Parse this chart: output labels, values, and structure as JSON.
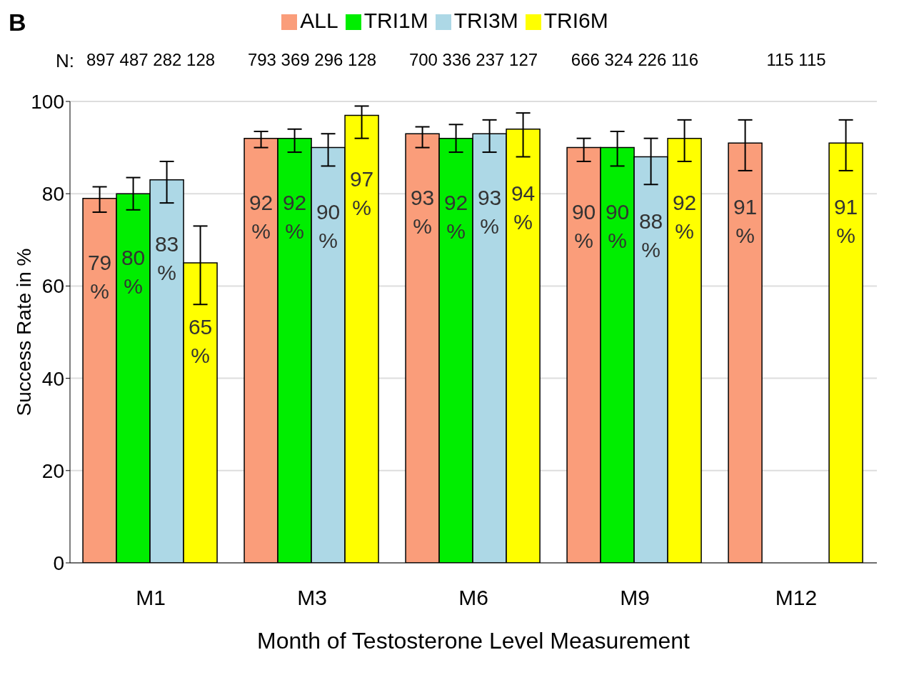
{
  "chart_data": {
    "type": "bar",
    "xlabel": "Month of Testosterone Level Measurement",
    "ylabel": "Success Rate in %",
    "categories": [
      "M1",
      "M3",
      "M6",
      "M9",
      "M12"
    ],
    "series": [
      {
        "name": "ALL",
        "color": "#fa9d7a",
        "values": [
          79,
          92,
          93,
          90,
          91
        ],
        "errors": [
          [
            76,
            81.5
          ],
          [
            90,
            93.5
          ],
          [
            90,
            94.5
          ],
          [
            87,
            92
          ],
          [
            85,
            96
          ]
        ],
        "value_labels": [
          "79 %",
          "92 %",
          "93 %",
          "90 %",
          "91 %"
        ]
      },
      {
        "name": "TRI1M",
        "color": "#00ee00",
        "values": [
          80,
          92,
          92,
          90,
          null
        ],
        "errors": [
          [
            76.5,
            83.5
          ],
          [
            89,
            94
          ],
          [
            89,
            95
          ],
          [
            86,
            93.5
          ],
          null
        ],
        "value_labels": [
          "80 %",
          "92 %",
          "92 %",
          "90 %",
          null
        ]
      },
      {
        "name": "TRI3M",
        "color": "#add8e6",
        "values": [
          83,
          90,
          93,
          88,
          null
        ],
        "errors": [
          [
            78,
            87
          ],
          [
            86,
            93
          ],
          [
            89,
            96
          ],
          [
            82,
            92
          ],
          null
        ],
        "value_labels": [
          "83 %",
          "90 %",
          "93 %",
          "88 %",
          null
        ]
      },
      {
        "name": "TRI6M",
        "color": "#ffff00",
        "values": [
          65,
          97,
          94,
          92,
          91
        ],
        "errors": [
          [
            56,
            73
          ],
          [
            92,
            99
          ],
          [
            88,
            97.5
          ],
          [
            87,
            96
          ],
          [
            85,
            96
          ]
        ],
        "value_labels": [
          "65 %",
          "97 %",
          "94 %",
          "92 %",
          "91 %"
        ]
      }
    ],
    "ylim": [
      0,
      100
    ],
    "yticks": [
      0,
      20,
      40,
      60,
      80,
      100
    ],
    "grid": "y",
    "legend": "top",
    "annotations": [
      "B",
      "N:",
      "897 487 282 128",
      "793 369 296 128",
      "700 336 237 127",
      "666 324 226 116",
      "115 115"
    ]
  }
}
